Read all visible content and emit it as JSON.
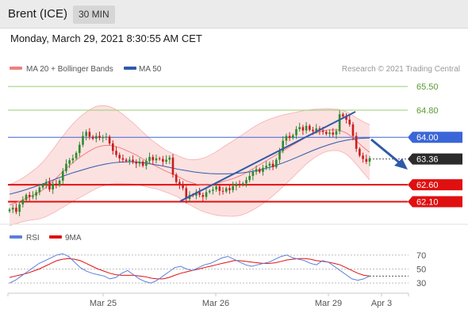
{
  "header": {
    "instrument": "Brent (ICE)",
    "timeframe": "30 MIN",
    "datetime": "Monday, March 29, 2021 8:30:55 AM CET"
  },
  "legend": {
    "items": [
      {
        "label": "MA 20 + Bollinger Bands",
        "color": "#f08080"
      },
      {
        "label": "MA 50",
        "color": "#2f5aa8"
      }
    ],
    "credit": "Research © 2021 Trading Central"
  },
  "rsi_legend": {
    "items": [
      {
        "label": "RSI",
        "color": "#5a7fd8"
      },
      {
        "label": "9MA",
        "color": "#e01010"
      }
    ]
  },
  "colors": {
    "resistance_green": "#9acd72",
    "pivot_blue": "#3b66d8",
    "support_red": "#e01010",
    "current_price": "#2b2b2b",
    "trend_line": "#2f5aa8",
    "bollinger_fill": "#fbdcdc",
    "candle_green": "#2e8b2e",
    "candle_red": "#c81e1e"
  },
  "chart_data": [
    {
      "type": "candlestick",
      "title": "",
      "x_ticks": [
        "Mar 25",
        "Mar 26",
        "Mar 29",
        "Apr 3"
      ],
      "y_range": [
        61.55,
        65.9
      ],
      "levels": [
        {
          "value": 65.5,
          "label": "65.50",
          "kind": "resistance"
        },
        {
          "value": 64.8,
          "label": "64.80",
          "kind": "resistance"
        },
        {
          "value": 64.0,
          "label": "64.00",
          "kind": "pivot"
        },
        {
          "value": 63.36,
          "label": "63.36",
          "kind": "current"
        },
        {
          "value": 62.6,
          "label": "62.60",
          "kind": "support"
        },
        {
          "value": 62.1,
          "label": "62.10",
          "kind": "support"
        }
      ],
      "close": [
        61.87,
        61.92,
        61.8,
        62.02,
        62.15,
        62.3,
        62.24,
        62.28,
        62.38,
        62.52,
        62.6,
        62.68,
        62.46,
        62.63,
        62.58,
        62.72,
        63.0,
        63.22,
        63.32,
        63.38,
        63.54,
        63.78,
        64.04,
        64.16,
        64.02,
        63.96,
        64.04,
        63.98,
        64.0,
        64.02,
        63.82,
        63.6,
        63.48,
        63.38,
        63.34,
        63.3,
        63.34,
        63.28,
        63.22,
        63.28,
        63.16,
        63.3,
        63.42,
        63.32,
        63.38,
        63.36,
        63.28,
        63.34,
        63.4,
        62.9,
        62.68,
        62.58,
        62.5,
        62.18,
        62.3,
        62.28,
        62.38,
        62.3,
        62.24,
        62.38,
        62.42,
        62.46,
        62.55,
        62.42,
        62.4,
        62.5,
        62.44,
        62.56,
        62.62,
        62.6,
        62.64,
        62.74,
        62.86,
        62.98,
        63.06,
        62.98,
        63.1,
        63.16,
        63.22,
        63.12,
        63.34,
        63.6,
        63.9,
        64.04,
        63.98,
        64.06,
        64.24,
        64.3,
        64.2,
        64.34,
        64.22,
        64.18,
        64.26,
        64.2,
        64.16,
        64.1,
        64.14,
        64.08,
        64.18,
        64.68,
        64.62,
        64.52,
        64.38,
        64.04,
        63.66,
        63.46,
        63.36,
        63.28,
        63.38
      ],
      "ma20": [
        62.0,
        62.05,
        62.1,
        62.16,
        62.22,
        62.28,
        62.34,
        62.42,
        62.52,
        62.64,
        62.76,
        62.9,
        63.02,
        63.15,
        63.26,
        63.37,
        63.46,
        63.55,
        63.63,
        63.7,
        63.74,
        63.76,
        63.76,
        63.74,
        63.7,
        63.65,
        63.59,
        63.53,
        63.46,
        63.38,
        63.3,
        63.22,
        63.16,
        63.09,
        63.02,
        62.96,
        62.9,
        62.84,
        62.77,
        62.7,
        62.66,
        62.62,
        62.6,
        62.6,
        62.61,
        62.63,
        62.66,
        62.7,
        62.74,
        62.78,
        62.83,
        62.89,
        62.96,
        63.04,
        63.12,
        63.2,
        63.28,
        63.36,
        63.44,
        63.52,
        63.6,
        63.68,
        63.76,
        63.84,
        63.92,
        64.0,
        64.06,
        64.12,
        64.16,
        64.2,
        64.22,
        64.22,
        64.22,
        64.18,
        64.12,
        64.02,
        63.9,
        63.78,
        63.66,
        63.56
      ],
      "ma50": [
        62.32,
        62.38,
        62.45,
        62.53,
        62.61,
        62.7,
        62.79,
        62.88,
        62.96,
        63.03,
        63.1,
        63.16,
        63.21,
        63.25,
        63.27,
        63.28,
        63.27,
        63.24,
        63.2,
        63.16,
        63.11,
        63.06,
        63.02,
        62.98,
        62.95,
        62.93,
        62.92,
        62.92,
        62.93,
        62.95,
        62.98,
        63.02,
        63.08,
        63.15,
        63.23,
        63.32,
        63.42,
        63.52,
        63.62,
        63.71,
        63.79,
        63.86,
        63.91,
        63.95,
        63.97,
        63.98
      ],
      "rsi": {
        "y_ticks": [
          "70",
          "50",
          "30"
        ],
        "y_range": [
          20,
          80
        ],
        "rsi": [
          30,
          34,
          40,
          46,
          52,
          58,
          62,
          66,
          70,
          72,
          68,
          60,
          52,
          47,
          44,
          42,
          40,
          36,
          38,
          44,
          48,
          42,
          36,
          32,
          30,
          34,
          40,
          46,
          52,
          54,
          50,
          48,
          52,
          56,
          58,
          62,
          66,
          68,
          64,
          60,
          56,
          54,
          56,
          58,
          60,
          64,
          68,
          70,
          66,
          64,
          62,
          58,
          56,
          62,
          60,
          54,
          48,
          42,
          36,
          34,
          36,
          40
        ],
        "ma9": [
          38,
          40,
          42,
          44,
          47,
          50,
          54,
          58,
          62,
          64,
          65,
          64,
          62,
          58,
          54,
          50,
          47,
          44,
          42,
          41,
          41,
          41,
          40,
          39,
          37,
          36,
          36,
          38,
          41,
          44,
          46,
          48,
          50,
          52,
          54,
          56,
          58,
          60,
          62,
          62,
          61,
          60,
          59,
          58,
          58,
          59,
          61,
          63,
          64,
          65,
          65,
          64,
          62,
          61,
          60,
          58,
          56,
          52,
          48,
          44,
          41,
          40
        ]
      }
    }
  ]
}
